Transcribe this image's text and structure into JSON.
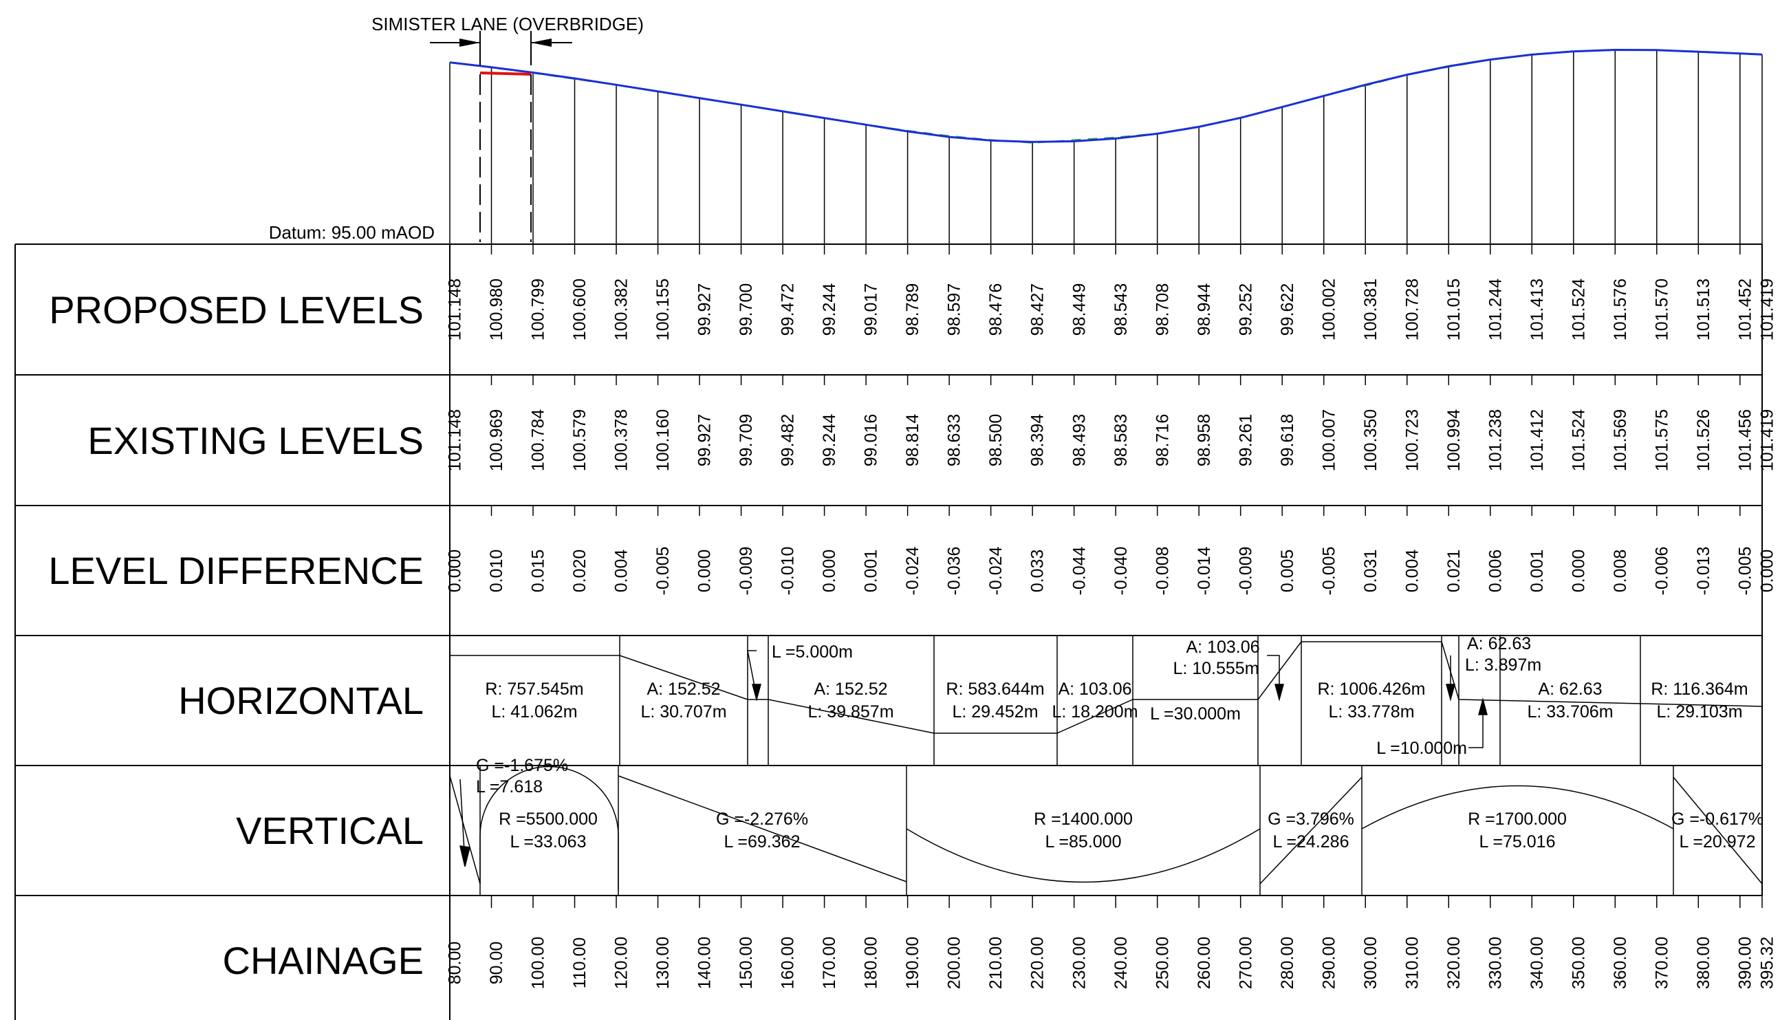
{
  "bridge": {
    "label": "SIMISTER LANE (OVERBRIDGE)"
  },
  "datum": "Datum: 95.00 mAOD",
  "rows": {
    "proposed": "PROPOSED LEVELS",
    "existing": "EXISTING LEVELS",
    "difference": "LEVEL DIFFERENCE",
    "horizontal": "HORIZONTAL",
    "vertical": "VERTICAL",
    "chainage": "CHAINAGE"
  },
  "stations": [
    {
      "ch": "80.00",
      "prop": "101.148",
      "exist": "101.148",
      "diff": "0.000"
    },
    {
      "ch": "90.00",
      "prop": "100.980",
      "exist": "100.969",
      "diff": "0.010"
    },
    {
      "ch": "100.00",
      "prop": "100.799",
      "exist": "100.784",
      "diff": "0.015"
    },
    {
      "ch": "110.00",
      "prop": "100.600",
      "exist": "100.579",
      "diff": "0.020"
    },
    {
      "ch": "120.00",
      "prop": "100.382",
      "exist": "100.378",
      "diff": "0.004"
    },
    {
      "ch": "130.00",
      "prop": "100.155",
      "exist": "100.160",
      "diff": "-0.005"
    },
    {
      "ch": "140.00",
      "prop": "99.927",
      "exist": "99.927",
      "diff": "0.000"
    },
    {
      "ch": "150.00",
      "prop": "99.700",
      "exist": "99.709",
      "diff": "-0.009"
    },
    {
      "ch": "160.00",
      "prop": "99.472",
      "exist": "99.482",
      "diff": "-0.010"
    },
    {
      "ch": "170.00",
      "prop": "99.244",
      "exist": "99.244",
      "diff": "0.000"
    },
    {
      "ch": "180.00",
      "prop": "99.017",
      "exist": "99.016",
      "diff": "0.001"
    },
    {
      "ch": "190.00",
      "prop": "98.789",
      "exist": "98.814",
      "diff": "-0.024"
    },
    {
      "ch": "200.00",
      "prop": "98.597",
      "exist": "98.633",
      "diff": "-0.036"
    },
    {
      "ch": "210.00",
      "prop": "98.476",
      "exist": "98.500",
      "diff": "-0.024"
    },
    {
      "ch": "220.00",
      "prop": "98.427",
      "exist": "98.394",
      "diff": "0.033"
    },
    {
      "ch": "230.00",
      "prop": "98.449",
      "exist": "98.493",
      "diff": "-0.044"
    },
    {
      "ch": "240.00",
      "prop": "98.543",
      "exist": "98.583",
      "diff": "-0.040"
    },
    {
      "ch": "250.00",
      "prop": "98.708",
      "exist": "98.716",
      "diff": "-0.008"
    },
    {
      "ch": "260.00",
      "prop": "98.944",
      "exist": "98.958",
      "diff": "-0.014"
    },
    {
      "ch": "270.00",
      "prop": "99.252",
      "exist": "99.261",
      "diff": "-0.009"
    },
    {
      "ch": "280.00",
      "prop": "99.622",
      "exist": "99.618",
      "diff": "0.005"
    },
    {
      "ch": "290.00",
      "prop": "100.002",
      "exist": "100.007",
      "diff": "-0.005"
    },
    {
      "ch": "300.00",
      "prop": "100.381",
      "exist": "100.350",
      "diff": "0.031"
    },
    {
      "ch": "310.00",
      "prop": "100.728",
      "exist": "100.723",
      "diff": "0.004"
    },
    {
      "ch": "320.00",
      "prop": "101.015",
      "exist": "100.994",
      "diff": "0.021"
    },
    {
      "ch": "330.00",
      "prop": "101.244",
      "exist": "101.238",
      "diff": "0.006"
    },
    {
      "ch": "340.00",
      "prop": "101.413",
      "exist": "101.412",
      "diff": "0.001"
    },
    {
      "ch": "350.00",
      "prop": "101.524",
      "exist": "101.524",
      "diff": "0.000"
    },
    {
      "ch": "360.00",
      "prop": "101.576",
      "exist": "101.569",
      "diff": "0.008"
    },
    {
      "ch": "370.00",
      "prop": "101.570",
      "exist": "101.575",
      "diff": "-0.006"
    },
    {
      "ch": "380.00",
      "prop": "101.513",
      "exist": "101.526",
      "diff": "-0.013"
    },
    {
      "ch": "390.00",
      "prop": "101.452",
      "exist": "101.456",
      "diff": "-0.005"
    },
    {
      "ch": "395.32",
      "prop": "101.419",
      "exist": "101.419",
      "diff": "0.000"
    }
  ],
  "horizontal": [
    {
      "line1": "R: 757.545m",
      "line2": "L: 41.062m"
    },
    {
      "line1": "A: 152.52",
      "line2": "L: 30.707m"
    },
    {
      "line1": "L =5.000m"
    },
    {
      "line1": "A: 152.52",
      "line2": "L: 39.857m"
    },
    {
      "line1": "R: 583.644m",
      "line2": "L: 29.452m"
    },
    {
      "line1": "A: 103.06",
      "line2": "L: 18.200m"
    },
    {
      "line1": "L =30.000m"
    },
    {
      "line1": "A: 103.06",
      "line2": "L: 10.555m"
    },
    {
      "line1": "R: 1006.426m",
      "line2": "L: 33.778m"
    },
    {
      "line1": "A: 62.63",
      "line2": "L: 3.897m"
    },
    {
      "line1": "L =10.000m"
    },
    {
      "line1": "A: 62.63",
      "line2": "L: 33.706m"
    },
    {
      "line1": "R: 116.364m",
      "line2": "L: 29.103m"
    }
  ],
  "vertical": [
    {
      "line1": "G =-1.675%",
      "line2": "L =7.618"
    },
    {
      "line1": "R =5500.000",
      "line2": "L =33.063"
    },
    {
      "line1": "G =-2.276%",
      "line2": "L =69.362"
    },
    {
      "line1": "R =1400.000",
      "line2": "L =85.000"
    },
    {
      "line1": "G =3.796%",
      "line2": "L =24.286"
    },
    {
      "line1": "R =1700.000",
      "line2": "L =75.016"
    },
    {
      "line1": "G =-0.617%",
      "line2": "L =20.972"
    }
  ],
  "colors": {
    "profile": "#1a2fd6",
    "existing": "#2aa84a",
    "bridge": "#e01010",
    "lines": "#000000"
  }
}
